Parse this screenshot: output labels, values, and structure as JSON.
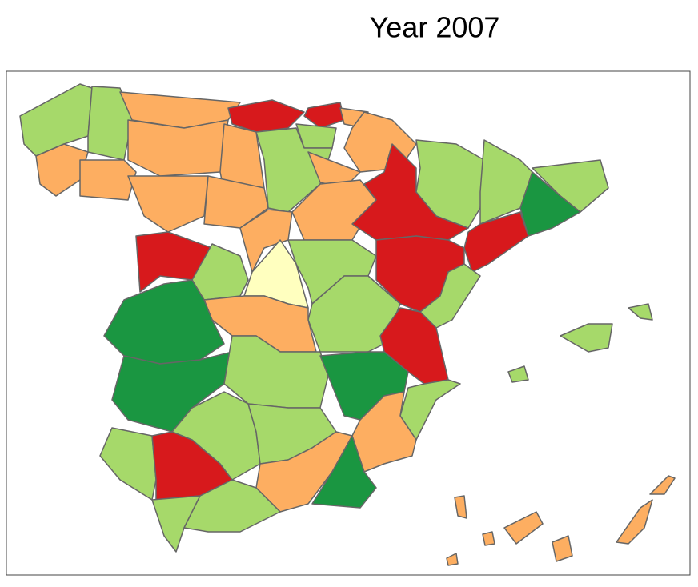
{
  "title": "Year 2007"
}
